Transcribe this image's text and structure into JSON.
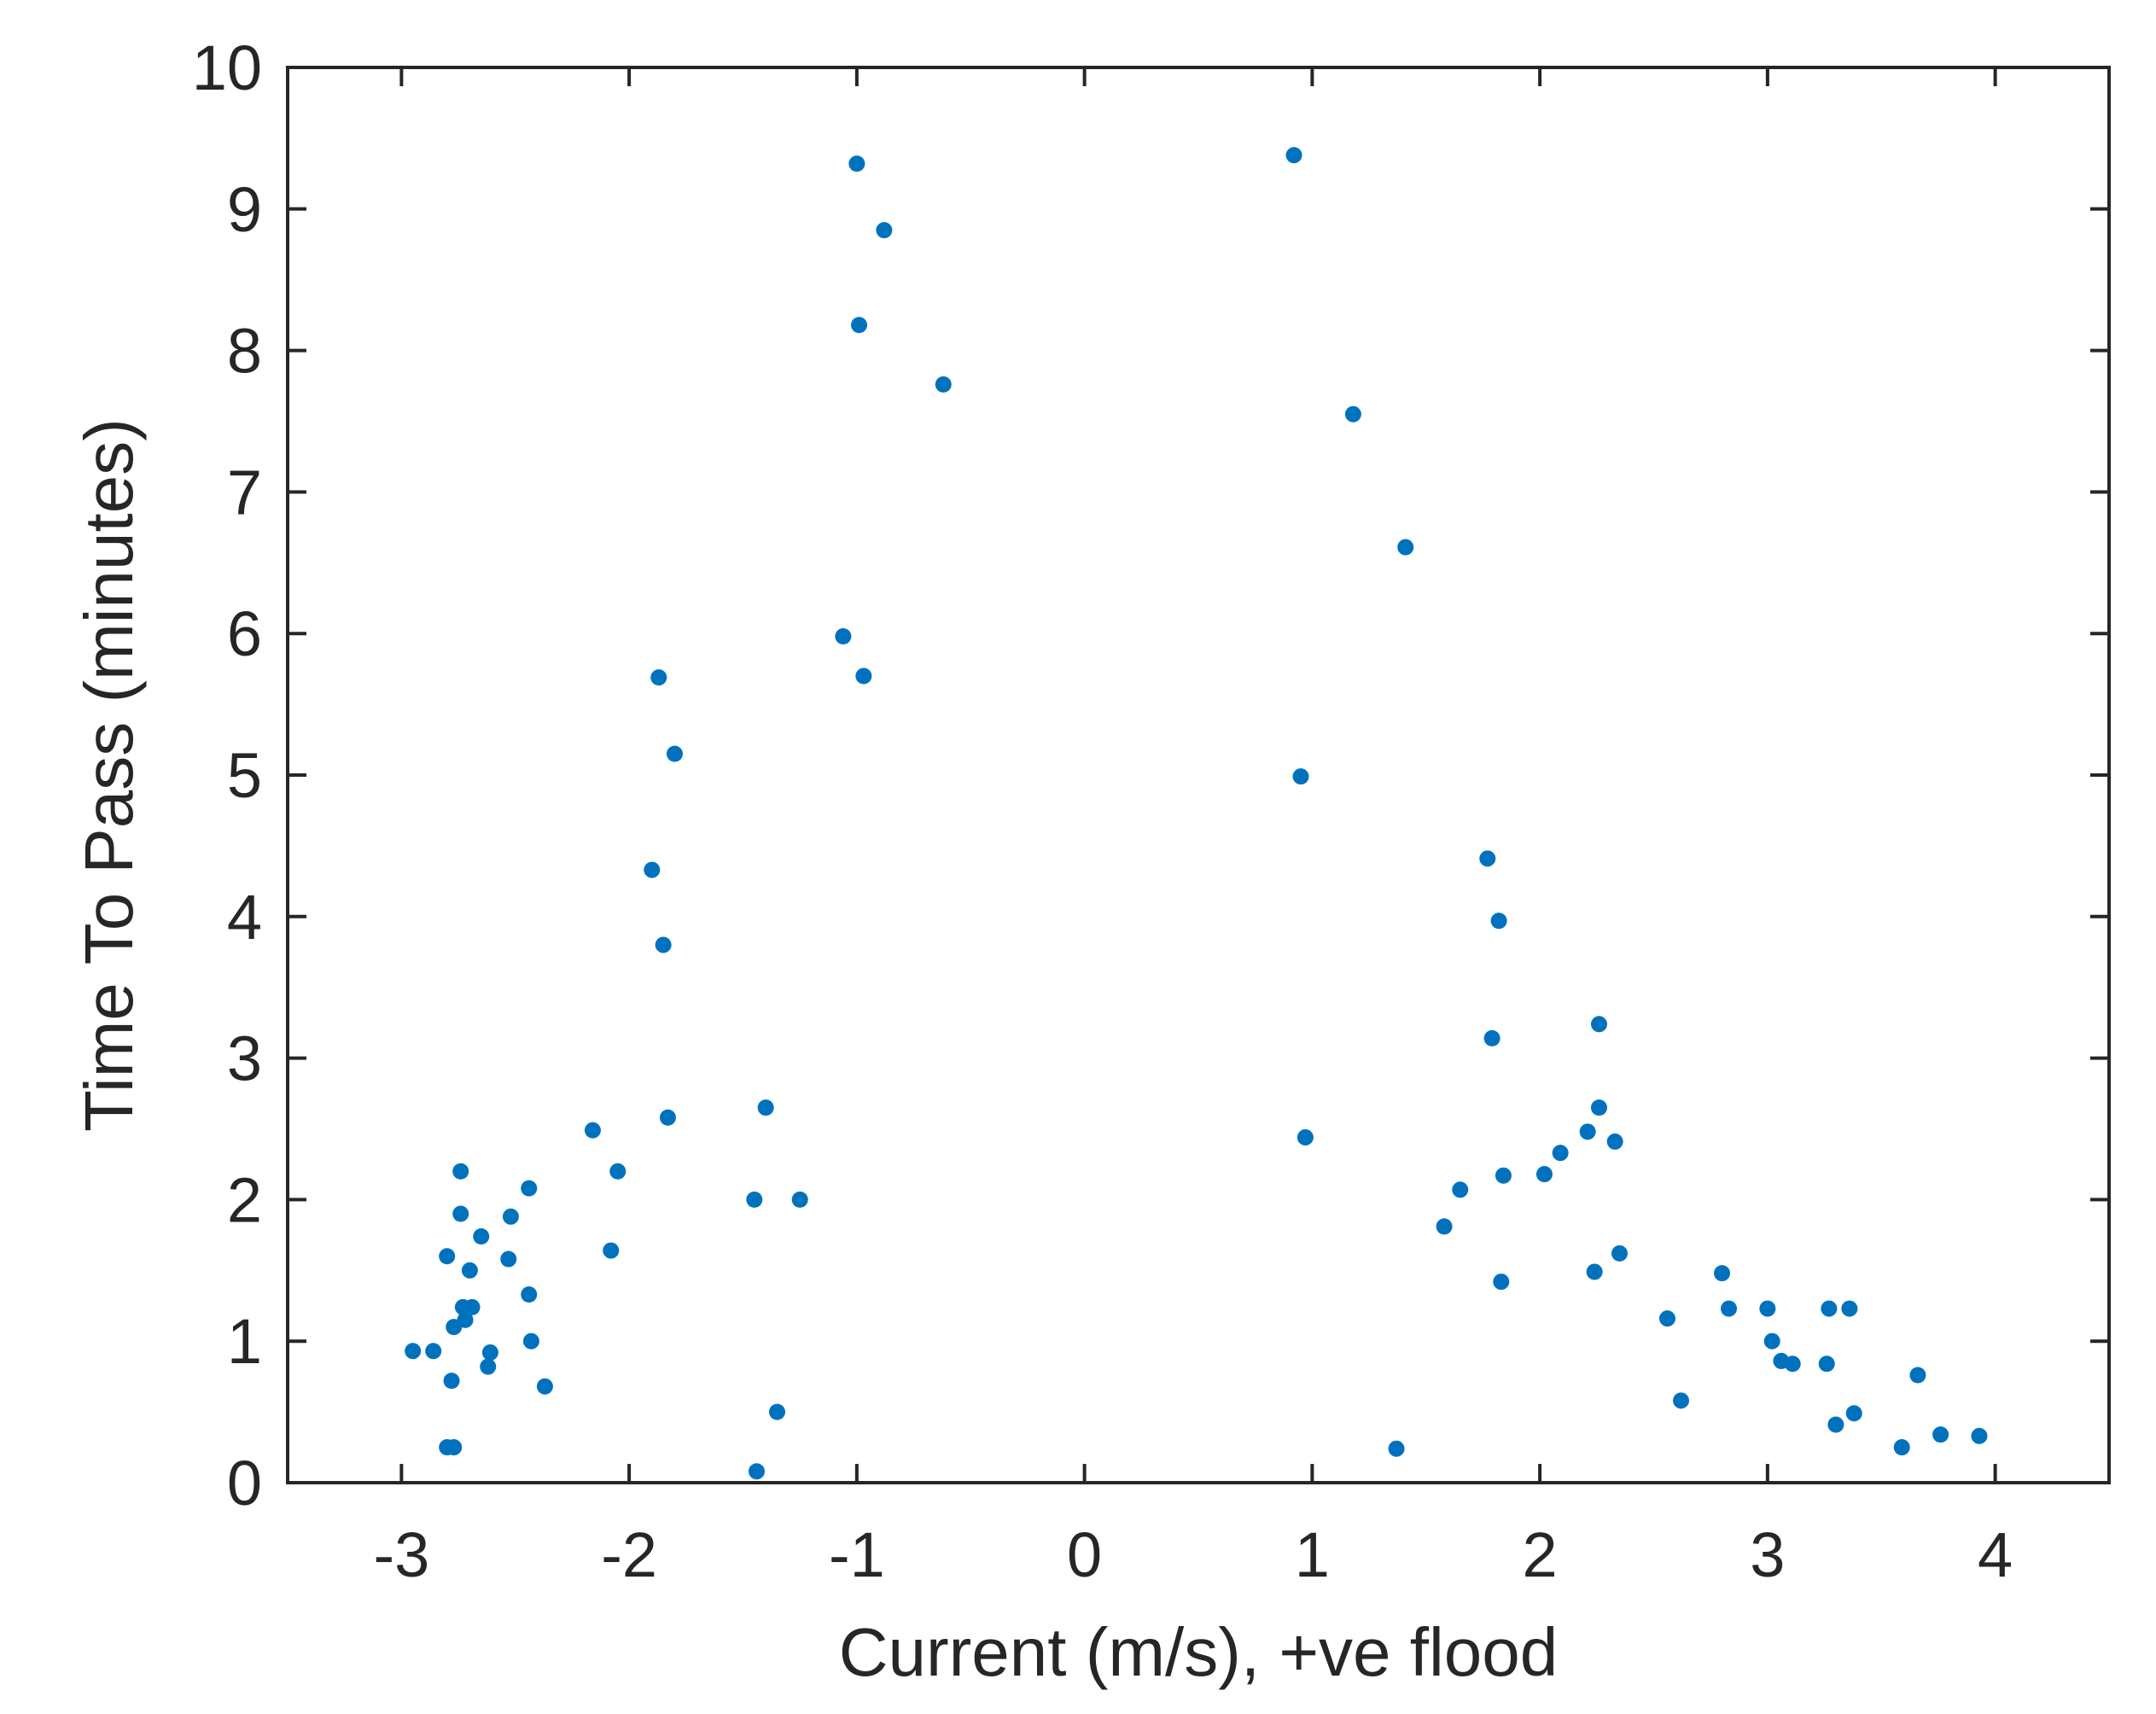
{
  "chart_data": {
    "type": "scatter",
    "title": "",
    "xlabel": "Current (m/s), +ve flood",
    "ylabel": "Time To Pass (minutes)",
    "xlim": [
      -3.5,
      4.5
    ],
    "ylim": [
      0,
      10
    ],
    "xticks": [
      {
        "value": -3,
        "label": "-3"
      },
      {
        "value": -2,
        "label": "-2"
      },
      {
        "value": -1,
        "label": "-1"
      },
      {
        "value": 0,
        "label": "0"
      },
      {
        "value": 1,
        "label": "1"
      },
      {
        "value": 2,
        "label": "2"
      },
      {
        "value": 3,
        "label": "3"
      },
      {
        "value": 4,
        "label": "4"
      }
    ],
    "yticks": [
      {
        "value": 0,
        "label": "0"
      },
      {
        "value": 1,
        "label": "1"
      },
      {
        "value": 2,
        "label": "2"
      },
      {
        "value": 3,
        "label": "3"
      },
      {
        "value": 4,
        "label": "4"
      },
      {
        "value": 5,
        "label": "5"
      },
      {
        "value": 6,
        "label": "6"
      },
      {
        "value": 7,
        "label": "7"
      },
      {
        "value": 8,
        "label": "8"
      },
      {
        "value": 9,
        "label": "9"
      },
      {
        "value": 10,
        "label": "10"
      }
    ],
    "grid": false,
    "marker_color": "#0072BD",
    "series": [
      {
        "points": [
          [
            -2.95,
            0.93
          ],
          [
            -2.86,
            0.93
          ],
          [
            -2.8,
            1.6
          ],
          [
            -2.78,
            0.72
          ],
          [
            -2.77,
            1.1
          ],
          [
            -2.74,
            2.2
          ],
          [
            -2.74,
            1.9
          ],
          [
            -2.73,
            1.24
          ],
          [
            -2.72,
            1.15
          ],
          [
            -2.7,
            1.5
          ],
          [
            -2.69,
            1.24
          ],
          [
            -2.8,
            0.25
          ],
          [
            -2.77,
            0.25
          ],
          [
            -2.65,
            1.74
          ],
          [
            -2.62,
            0.82
          ],
          [
            -2.61,
            0.92
          ],
          [
            -2.53,
            1.58
          ],
          [
            -2.52,
            1.88
          ],
          [
            -2.44,
            2.08
          ],
          [
            -2.44,
            1.33
          ],
          [
            -2.43,
            1.0
          ],
          [
            -2.37,
            0.68
          ],
          [
            -2.16,
            2.49
          ],
          [
            -2.08,
            1.64
          ],
          [
            -2.05,
            2.2
          ],
          [
            -1.9,
            4.33
          ],
          [
            -1.87,
            5.69
          ],
          [
            -1.85,
            3.8
          ],
          [
            -1.83,
            2.58
          ],
          [
            -1.8,
            5.15
          ],
          [
            -1.45,
            2.0
          ],
          [
            -1.44,
            0.08
          ],
          [
            -1.4,
            2.65
          ],
          [
            -1.35,
            0.5
          ],
          [
            -1.25,
            2.0
          ],
          [
            -1.06,
            5.98
          ],
          [
            -1.0,
            9.32
          ],
          [
            -0.99,
            8.18
          ],
          [
            -0.97,
            5.7
          ],
          [
            -0.88,
            8.85
          ],
          [
            -0.62,
            7.76
          ],
          [
            0.92,
            9.38
          ],
          [
            0.95,
            4.99
          ],
          [
            0.97,
            2.44
          ],
          [
            1.18,
            7.55
          ],
          [
            1.37,
            0.24
          ],
          [
            1.41,
            6.61
          ],
          [
            1.58,
            1.81
          ],
          [
            1.65,
            2.07
          ],
          [
            1.77,
            4.41
          ],
          [
            1.79,
            3.14
          ],
          [
            1.82,
            3.97
          ],
          [
            1.83,
            1.42
          ],
          [
            1.84,
            2.17
          ],
          [
            2.02,
            2.18
          ],
          [
            2.09,
            2.33
          ],
          [
            2.21,
            2.48
          ],
          [
            2.24,
            1.49
          ],
          [
            2.26,
            3.24
          ],
          [
            2.26,
            2.65
          ],
          [
            2.33,
            2.41
          ],
          [
            2.35,
            1.62
          ],
          [
            2.56,
            1.16
          ],
          [
            2.62,
            0.58
          ],
          [
            2.8,
            1.48
          ],
          [
            2.83,
            1.23
          ],
          [
            3.0,
            1.23
          ],
          [
            3.02,
            1.0
          ],
          [
            3.06,
            0.86
          ],
          [
            3.11,
            0.84
          ],
          [
            3.26,
            0.84
          ],
          [
            3.27,
            1.23
          ],
          [
            3.3,
            0.41
          ],
          [
            3.36,
            1.23
          ],
          [
            3.38,
            0.49
          ],
          [
            3.59,
            0.25
          ],
          [
            3.66,
            0.76
          ],
          [
            3.76,
            0.34
          ],
          [
            3.93,
            0.33
          ]
        ]
      }
    ]
  }
}
